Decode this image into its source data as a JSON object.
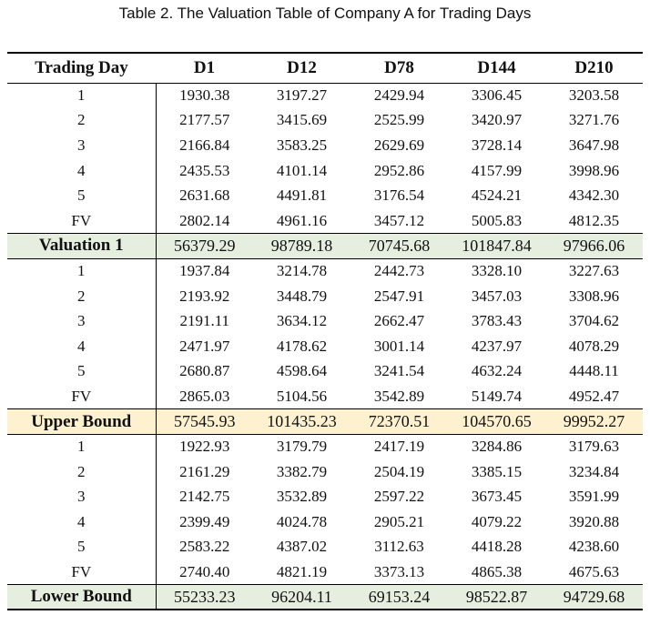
{
  "caption": "Table 2.  The Valuation Table of Company A for Trading Days",
  "table": {
    "headers": [
      "Trading Day",
      "D1",
      "D12",
      "D78",
      "D144",
      "D210"
    ],
    "sections": [
      {
        "rows": [
          [
            "1",
            "1930.38",
            "3197.27",
            "2429.94",
            "3306.45",
            "3203.58"
          ],
          [
            "2",
            "2177.57",
            "3415.69",
            "2525.99",
            "3420.97",
            "3271.76"
          ],
          [
            "3",
            "2166.84",
            "3583.25",
            "2629.69",
            "3728.14",
            "3647.98"
          ],
          [
            "4",
            "2435.53",
            "4101.14",
            "2952.86",
            "4157.99",
            "3998.96"
          ],
          [
            "5",
            "2631.68",
            "4491.81",
            "3176.54",
            "4524.21",
            "4342.30"
          ],
          [
            "FV",
            "2802.14",
            "4961.16",
            "3457.12",
            "5005.83",
            "4812.35"
          ]
        ],
        "summary": [
          "Valuation 1",
          "56379.29",
          "98789.18",
          "70745.68",
          "101847.84",
          "97966.06"
        ],
        "summary_color": "#e6efdf"
      },
      {
        "rows": [
          [
            "1",
            "1937.84",
            "3214.78",
            "2442.73",
            "3328.10",
            "3227.63"
          ],
          [
            "2",
            "2193.92",
            "3448.79",
            "2547.91",
            "3457.03",
            "3308.96"
          ],
          [
            "3",
            "2191.11",
            "3634.12",
            "2662.47",
            "3783.43",
            "3704.62"
          ],
          [
            "4",
            "2471.97",
            "4178.62",
            "3001.14",
            "4237.97",
            "4078.29"
          ],
          [
            "5",
            "2680.87",
            "4598.64",
            "3241.54",
            "4632.24",
            "4448.11"
          ],
          [
            "FV",
            "2865.03",
            "5104.56",
            "3542.89",
            "5149.74",
            "4952.47"
          ]
        ],
        "summary": [
          "Upper Bound",
          "57545.93",
          "101435.23",
          "72370.51",
          "104570.65",
          "99952.27"
        ],
        "summary_color": "#fdf1cf"
      },
      {
        "rows": [
          [
            "1",
            "1922.93",
            "3179.79",
            "2417.19",
            "3284.86",
            "3179.63"
          ],
          [
            "2",
            "2161.29",
            "3382.79",
            "2504.19",
            "3385.15",
            "3234.84"
          ],
          [
            "3",
            "2142.75",
            "3532.89",
            "2597.22",
            "3673.45",
            "3591.99"
          ],
          [
            "4",
            "2399.49",
            "4024.78",
            "2905.21",
            "4079.22",
            "3920.88"
          ],
          [
            "5",
            "2583.22",
            "4387.02",
            "3112.63",
            "4418.28",
            "4238.60"
          ],
          [
            "FV",
            "2740.40",
            "4821.19",
            "3373.13",
            "4865.38",
            "4675.63"
          ]
        ],
        "summary": [
          "Lower Bound",
          "55233.23",
          "96204.11",
          "69153.24",
          "98522.87",
          "94729.68"
        ],
        "summary_color": "#e6efdf"
      }
    ]
  }
}
